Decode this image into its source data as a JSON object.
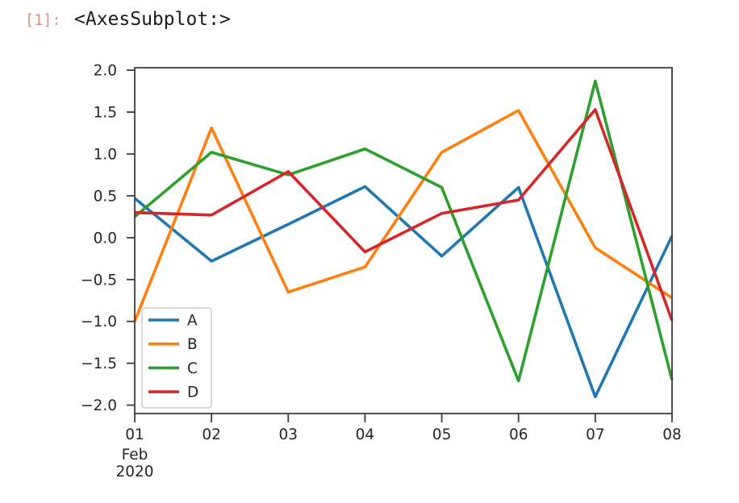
{
  "notebook": {
    "prompt": "[1]:",
    "repr_text": "<AxesSubplot:>",
    "prompt_color": "#d89384",
    "text_color": "#1d1d1d"
  },
  "chart_data": {
    "type": "line",
    "title": "",
    "xlabel": "",
    "ylabel": "",
    "grid": false,
    "x": [
      "01",
      "02",
      "03",
      "04",
      "05",
      "06",
      "07",
      "08"
    ],
    "x_axis_secondary_labels": [
      "Feb",
      "2020"
    ],
    "ylim": [
      -2.1,
      2.03
    ],
    "yticks": [
      2.0,
      1.5,
      1.0,
      0.5,
      0.0,
      -0.5,
      -1.0,
      -1.5,
      -2.0
    ],
    "ytick_labels": [
      "2.0",
      "1.5",
      "1.0",
      "0.5",
      "0.0",
      "−0.5",
      "−1.0",
      "−1.5",
      "−2.0"
    ],
    "axis_color": "#3c3c3c",
    "tick_label_color": "#262626",
    "legend": {
      "position": "lower left",
      "entries": [
        "A",
        "B",
        "C",
        "D"
      ]
    },
    "series": [
      {
        "name": "A",
        "color": "#1f77b4",
        "values": [
          0.47,
          -0.28,
          0.16,
          0.61,
          -0.22,
          0.6,
          -1.9,
          0.02
        ]
      },
      {
        "name": "B",
        "color": "#ff7f0e",
        "values": [
          -1.0,
          1.31,
          -0.65,
          -0.35,
          1.02,
          1.52,
          -0.12,
          -0.72
        ]
      },
      {
        "name": "C",
        "color": "#2ca02c",
        "values": [
          0.25,
          1.02,
          0.75,
          1.06,
          0.6,
          -1.71,
          1.87,
          -1.7
        ]
      },
      {
        "name": "D",
        "color": "#d62728",
        "values": [
          0.3,
          0.27,
          0.79,
          -0.17,
          0.29,
          0.45,
          1.53,
          -0.99
        ]
      }
    ]
  }
}
